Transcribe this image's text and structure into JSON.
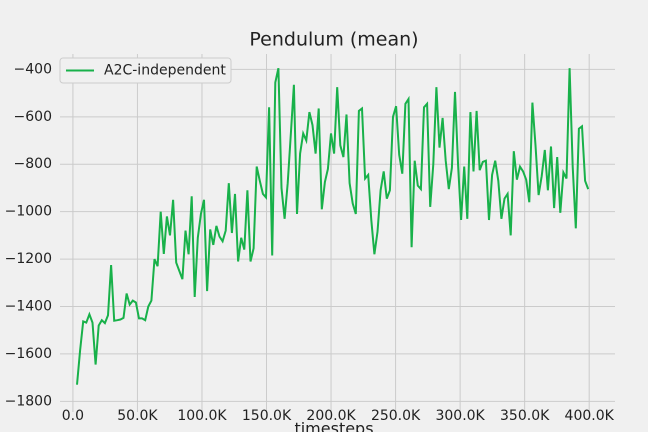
{
  "chart_data": {
    "type": "line",
    "title": "Pendulum (mean)",
    "x_label": "timesteps",
    "legend": "upper left",
    "grid": true,
    "xlim": [
      -10000,
      420000
    ],
    "ylim": [
      -1845,
      -335
    ],
    "xticks": [
      {
        "value": 0,
        "label": "0.0"
      },
      {
        "value": 50000,
        "label": "50.0K"
      },
      {
        "value": 100000,
        "label": "100.0K"
      },
      {
        "value": 150000,
        "label": "150.0K"
      },
      {
        "value": 200000,
        "label": "200.0K"
      },
      {
        "value": 250000,
        "label": "250.0K"
      },
      {
        "value": 300000,
        "label": "300.0K"
      },
      {
        "value": 350000,
        "label": "350.0K"
      },
      {
        "value": 400000,
        "label": "400.0K"
      }
    ],
    "yticks": [
      {
        "value": -400,
        "label": "−400"
      },
      {
        "value": -600,
        "label": "−600"
      },
      {
        "value": -800,
        "label": "−800"
      },
      {
        "value": -1000,
        "label": "−1000"
      },
      {
        "value": -1200,
        "label": "−1200"
      },
      {
        "value": -1400,
        "label": "−1400"
      },
      {
        "value": -1600,
        "label": "−1600"
      },
      {
        "value": -1800,
        "label": "−1800"
      }
    ],
    "x": [
      3200,
      5600,
      8000,
      10400,
      12800,
      15200,
      17600,
      20000,
      22400,
      24800,
      27200,
      29600,
      32000,
      34400,
      36800,
      39200,
      41600,
      44000,
      46400,
      48800,
      51200,
      53600,
      56000,
      58400,
      60800,
      63200,
      65600,
      68000,
      70400,
      72800,
      75200,
      77600,
      80000,
      82400,
      84800,
      87200,
      89600,
      92000,
      94400,
      96800,
      99200,
      101600,
      104000,
      106400,
      108800,
      111200,
      113600,
      116000,
      118400,
      120800,
      123200,
      125600,
      128000,
      130400,
      132800,
      135200,
      137600,
      140000,
      142400,
      144800,
      147200,
      149600,
      152000,
      154400,
      156800,
      159200,
      161600,
      164000,
      166400,
      168800,
      171200,
      173600,
      176000,
      178400,
      180800,
      183200,
      185600,
      188000,
      190400,
      192800,
      195200,
      197600,
      200000,
      202400,
      204800,
      207200,
      209600,
      212000,
      214400,
      216800,
      219200,
      221600,
      224000,
      226400,
      228800,
      231200,
      233600,
      236000,
      238400,
      240800,
      243200,
      245600,
      248000,
      250400,
      252800,
      255200,
      257600,
      260000,
      262400,
      264800,
      267200,
      269600,
      272000,
      274400,
      276800,
      279200,
      281600,
      284000,
      286400,
      288800,
      291200,
      293600,
      296000,
      298400,
      300800,
      303200,
      305600,
      308000,
      310400,
      312800,
      315200,
      317600,
      320000,
      322400,
      324800,
      327200,
      329600,
      332000,
      334400,
      336800,
      339200,
      341600,
      344000,
      346400,
      348800,
      351200,
      353600,
      356000,
      358400,
      360800,
      363200,
      365600,
      368000,
      370400,
      372800,
      375200,
      377600,
      380000,
      382400,
      384800,
      387200,
      389600,
      392000,
      394400,
      396800,
      399200
    ],
    "series": [
      {
        "name": "A2C-independent",
        "color": "#18b14a",
        "values": [
          -1730,
          -1585,
          -1463,
          -1468,
          -1433,
          -1468,
          -1645,
          -1480,
          -1458,
          -1470,
          -1437,
          -1225,
          -1460,
          -1458,
          -1455,
          -1448,
          -1345,
          -1392,
          -1375,
          -1383,
          -1450,
          -1450,
          -1458,
          -1400,
          -1375,
          -1200,
          -1230,
          -1000,
          -1178,
          -1020,
          -1100,
          -950,
          -1215,
          -1250,
          -1285,
          -1080,
          -1180,
          -935,
          -1360,
          -1110,
          -1010,
          -950,
          -1335,
          -1075,
          -1140,
          -1060,
          -1105,
          -1125,
          -1080,
          -880,
          -1090,
          -925,
          -1210,
          -1110,
          -1160,
          -910,
          -1210,
          -1155,
          -810,
          -870,
          -925,
          -940,
          -560,
          -1185,
          -455,
          -395,
          -900,
          -1030,
          -880,
          -675,
          -465,
          -1010,
          -755,
          -670,
          -700,
          -580,
          -635,
          -755,
          -565,
          -990,
          -875,
          -820,
          -670,
          -755,
          -475,
          -720,
          -770,
          -590,
          -880,
          -965,
          -1010,
          -575,
          -565,
          -860,
          -845,
          -1035,
          -1180,
          -1085,
          -910,
          -830,
          -945,
          -910,
          -600,
          -555,
          -760,
          -840,
          -545,
          -525,
          -1150,
          -785,
          -890,
          -905,
          -560,
          -545,
          -980,
          -800,
          -475,
          -730,
          -605,
          -785,
          -905,
          -815,
          -495,
          -805,
          -1035,
          -810,
          -1030,
          -580,
          -830,
          -575,
          -825,
          -790,
          -785,
          -1035,
          -845,
          -785,
          -870,
          -1030,
          -945,
          -925,
          -1100,
          -745,
          -865,
          -810,
          -830,
          -865,
          -960,
          -540,
          -720,
          -930,
          -850,
          -740,
          -910,
          -725,
          -985,
          -770,
          -1005,
          -835,
          -860,
          -395,
          -810,
          -1070,
          -650,
          -640,
          -870,
          -905
        ]
      }
    ]
  }
}
